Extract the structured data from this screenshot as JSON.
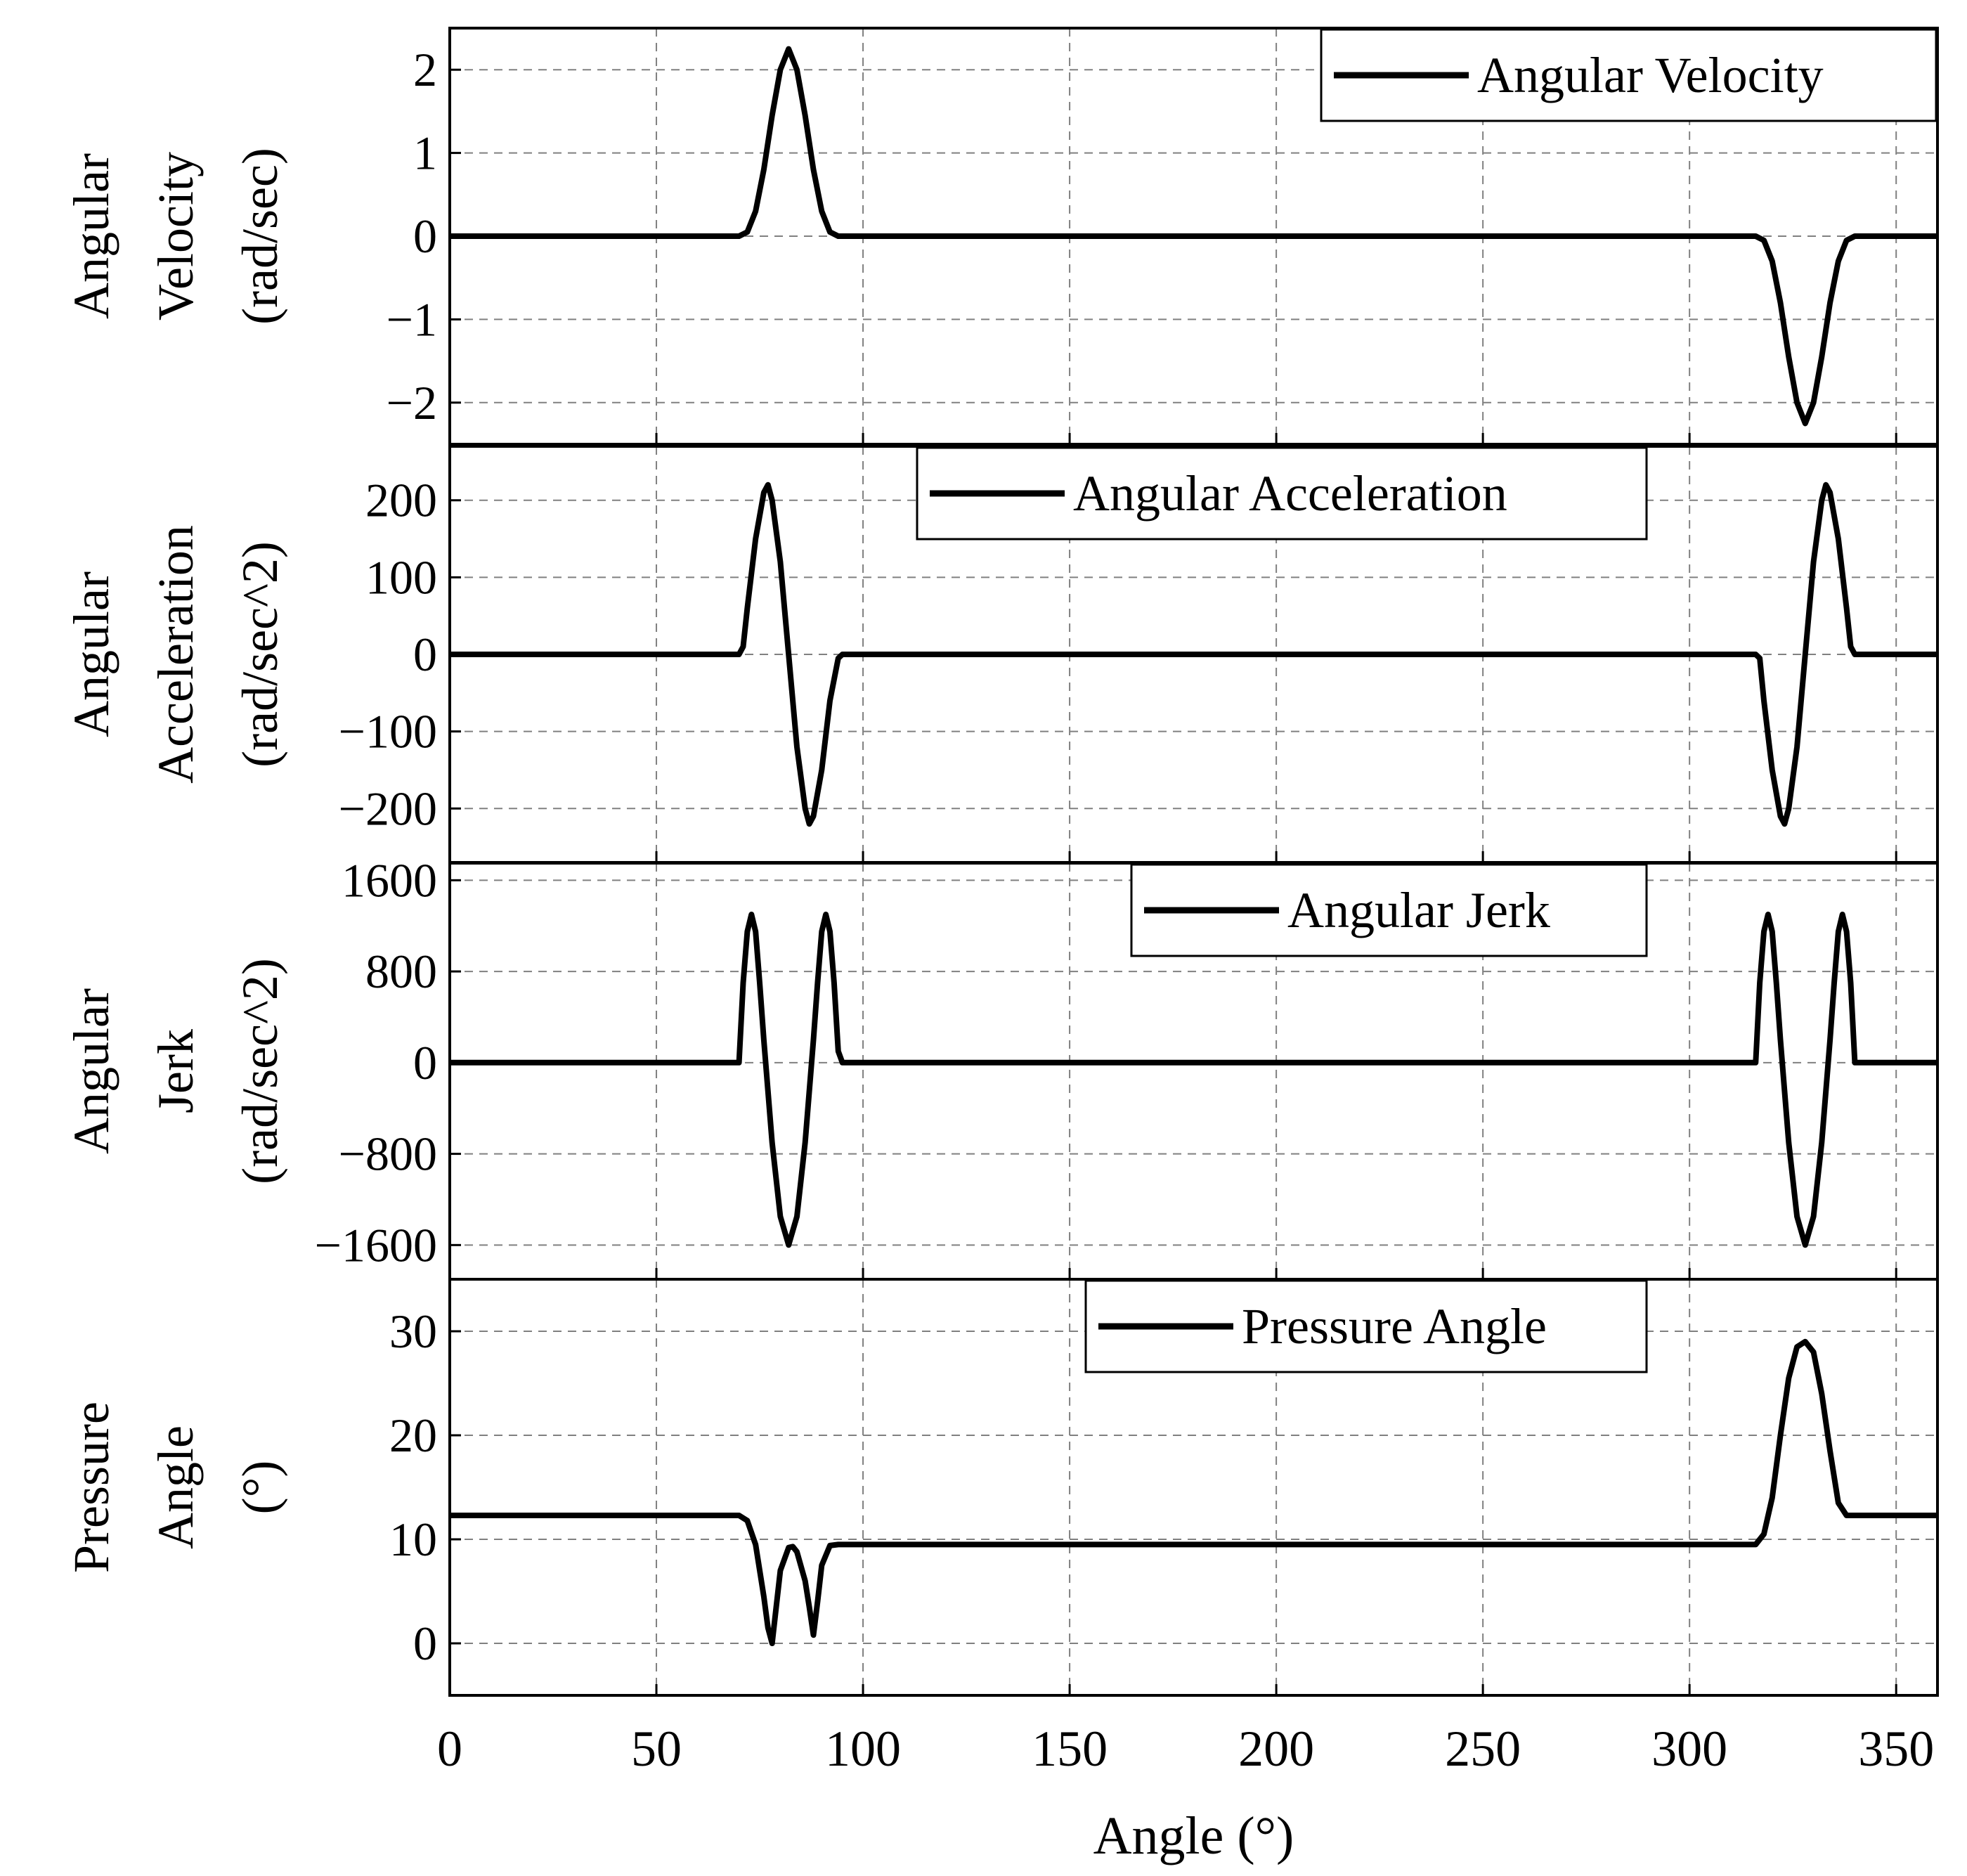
{
  "chart_data": {
    "type": "line",
    "shared_x": {
      "label": "Angle (°)",
      "range": [
        0,
        360
      ],
      "ticks": [
        0,
        50,
        100,
        150,
        200,
        250,
        300,
        350
      ],
      "tick_labels": [
        "0",
        "50",
        "100",
        "150",
        "200",
        "250",
        "300",
        "350"
      ]
    },
    "grid": true,
    "colors": {
      "line": "#000000",
      "grid": "#808080",
      "frame": "#000000"
    },
    "panels": [
      {
        "id": "angular-velocity",
        "ylabel_lines": [
          "Angular",
          "Velocity",
          "(rad/sec)"
        ],
        "ylim": [
          -2.5,
          2.5
        ],
        "yticks": [
          -2,
          -1,
          0,
          1,
          2
        ],
        "ytick_labels": [
          "−2",
          "−1",
          "0",
          "1",
          "2"
        ],
        "legend": {
          "label": "Angular Velocity",
          "placement": "top-right"
        },
        "series": [
          {
            "name": "Angular Velocity",
            "x": [
              0,
              70,
              72,
              74,
              76,
              78,
              80,
              82,
              84,
              86,
              88,
              90,
              92,
              94,
              96,
              316,
              318,
              320,
              322,
              324,
              326,
              328,
              330,
              332,
              334,
              336,
              338,
              340,
              360
            ],
            "y": [
              0,
              0,
              0.05,
              0.3,
              0.8,
              1.45,
              2.0,
              2.25,
              2.0,
              1.45,
              0.8,
              0.3,
              0.05,
              0,
              0,
              0,
              -0.05,
              -0.3,
              -0.8,
              -1.45,
              -2.0,
              -2.25,
              -2.0,
              -1.45,
              -0.8,
              -0.3,
              -0.05,
              0,
              0
            ]
          }
        ]
      },
      {
        "id": "angular-acceleration",
        "ylabel_lines": [
          "Angular",
          "Acceleration",
          "(rad/sec^2)"
        ],
        "ylim": [
          -270,
          270
        ],
        "yticks": [
          -200,
          -100,
          0,
          100,
          200
        ],
        "ytick_labels": [
          "−200",
          "−100",
          "0",
          "100",
          "200"
        ],
        "legend": {
          "label": "Angular Acceleration",
          "placement": "top-center"
        },
        "series": [
          {
            "name": "Angular Acceleration",
            "x": [
              0,
              70,
              71,
              72,
              74,
              76,
              77,
              78,
              80,
              82,
              84,
              86,
              87,
              88,
              90,
              92,
              94,
              95,
              316,
              317,
              318,
              320,
              322,
              323,
              324,
              326,
              328,
              330,
              332,
              333,
              334,
              336,
              338,
              339,
              340,
              360
            ],
            "y": [
              0,
              0,
              10,
              60,
              150,
              210,
              220,
              200,
              120,
              0,
              -120,
              -200,
              -220,
              -210,
              -150,
              -60,
              -5,
              0,
              0,
              -5,
              -60,
              -150,
              -210,
              -220,
              -200,
              -120,
              0,
              120,
              200,
              220,
              210,
              150,
              60,
              10,
              0,
              0
            ]
          }
        ]
      },
      {
        "id": "angular-jerk",
        "ylabel_lines": [
          "Angular",
          "Jerk",
          "(rad/sec^2)"
        ],
        "ylim": [
          -1900,
          1750
        ],
        "yticks": [
          -1600,
          -800,
          0,
          800,
          1600
        ],
        "ytick_labels": [
          "−1600",
          "−800",
          "0",
          "800",
          "1600"
        ],
        "legend": {
          "label": "Angular Jerk",
          "placement": "top-center"
        },
        "series": [
          {
            "name": "Angular Jerk",
            "x": [
              0,
              70,
              71,
              72,
              73,
              74,
              75,
              76,
              78,
              80,
              82,
              84,
              86,
              88,
              89,
              90,
              91,
              92,
              93,
              94,
              95,
              316,
              317,
              318,
              319,
              320,
              321,
              322,
              324,
              326,
              328,
              330,
              332,
              334,
              335,
              336,
              337,
              338,
              339,
              340,
              360
            ],
            "y": [
              0,
              0,
              700,
              1150,
              1300,
              1150,
              700,
              200,
              -700,
              -1350,
              -1600,
              -1350,
              -700,
              200,
              700,
              1150,
              1300,
              1150,
              700,
              100,
              0,
              0,
              700,
              1150,
              1300,
              1150,
              700,
              200,
              -700,
              -1350,
              -1600,
              -1350,
              -700,
              200,
              700,
              1150,
              1300,
              1150,
              700,
              0,
              0
            ]
          }
        ]
      },
      {
        "id": "pressure-angle",
        "ylabel_lines": [
          "Pressure",
          "Angle",
          "(°)"
        ],
        "ylim": [
          -5,
          35
        ],
        "yticks": [
          0,
          10,
          20,
          30
        ],
        "ytick_labels": [
          "0",
          "10",
          "20",
          "30"
        ],
        "legend": {
          "label": "Pressure Angle",
          "placement": "top-center"
        },
        "series": [
          {
            "name": "Pressure Angle",
            "x": [
              0,
              70,
              72,
              74,
              76,
              77,
              78,
              80,
              82,
              83,
              84,
              86,
              87,
              88,
              89,
              90,
              92,
              94,
              95,
              316,
              318,
              320,
              322,
              324,
              326,
              328,
              330,
              332,
              334,
              336,
              338,
              340,
              360
            ],
            "y": [
              12.3,
              12.3,
              11.8,
              9.5,
              4.5,
              1.5,
              0,
              7,
              9.2,
              9.3,
              8.8,
              6,
              3.5,
              0.8,
              4,
              7.5,
              9.4,
              9.5,
              9.5,
              9.5,
              10.5,
              14,
              20,
              25.5,
              28.5,
              29,
              28,
              24,
              18.5,
              13.5,
              12.3,
              12.3,
              12.3
            ]
          }
        ]
      }
    ]
  }
}
